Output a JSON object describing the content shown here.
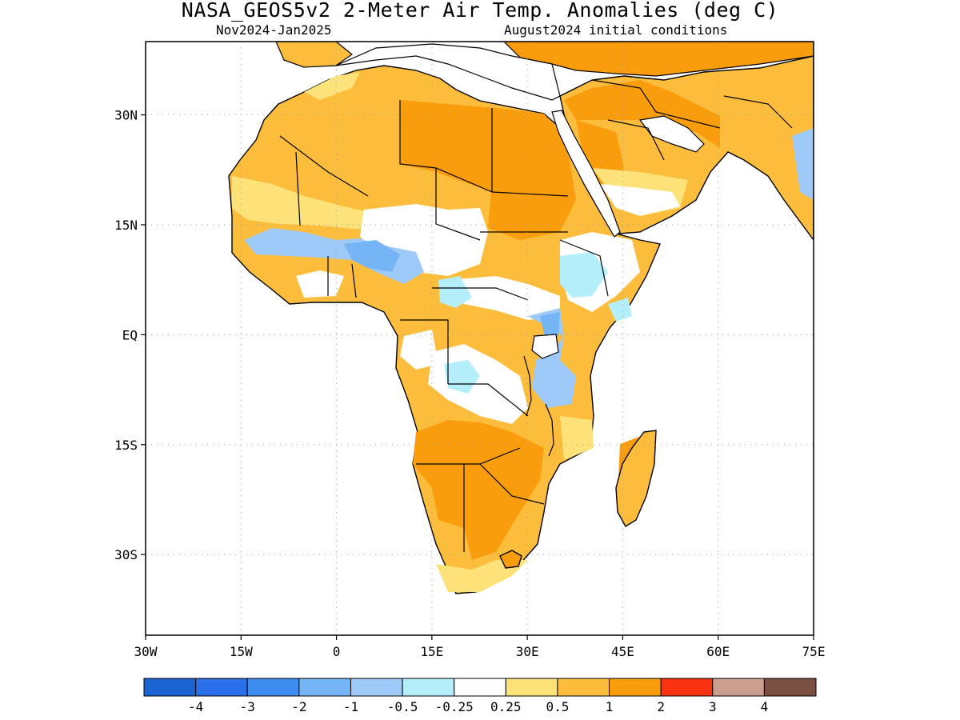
{
  "title": "NASA_GEOS5v2 2-Meter Air Temp. Anomalies (deg C)",
  "period": "Nov2024-Jan2025",
  "init": "August2024 initial conditions",
  "lat_labels": [
    "30N",
    "15N",
    "EQ",
    "15S",
    "30S"
  ],
  "lon_labels": [
    "30W",
    "15W",
    "0",
    "15E",
    "30E",
    "45E",
    "60E",
    "75E"
  ],
  "colorbar": {
    "colors": [
      "#1a63d2",
      "#2a6ee8",
      "#3d8df0",
      "#75b4f5",
      "#9dcaf8",
      "#b4eefa",
      "#ffffff",
      "#fde279",
      "#fcbc3c",
      "#fa9d0c",
      "#f93212",
      "#cc9e8e",
      "#7a4e40"
    ],
    "labels": [
      "-4",
      "-3",
      "-2",
      "-1",
      "-0.5",
      "-0.25",
      "0.25",
      "0.5",
      "1",
      "2",
      "3",
      "4"
    ]
  },
  "palette": {
    "light_orange": "#fcbc3c",
    "orange": "#fa9d0c",
    "yellow": "#fde279",
    "light_blue": "#9dcaf8",
    "cyan": "#b4eefa",
    "blue": "#75b4f5",
    "ocean": "#ffffff"
  }
}
